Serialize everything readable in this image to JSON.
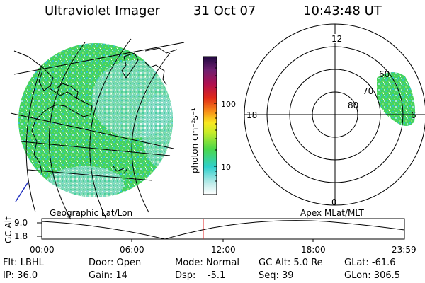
{
  "header": {
    "title": "Ultraviolet Imager",
    "date": "31 Oct 07",
    "time": "10:43:48 UT"
  },
  "colorbar": {
    "unit_label": "photon cm⁻²s⁻¹",
    "ticks": [
      "100",
      "10"
    ]
  },
  "polar_plot": {
    "mlt_labels": {
      "top": "12",
      "left": "18",
      "right": "6",
      "bottom": "0"
    },
    "lat_labels": [
      "60",
      "70",
      "80"
    ]
  },
  "timeline": {
    "y_title": "GC Alt",
    "y_ticks": [
      "9.0",
      "1.8"
    ],
    "left_label": "Geographic Lat/Lon",
    "right_label": "Apex  MLat/MLT",
    "time_ticks": [
      "00:00",
      "06:00",
      "12:00",
      "18:00",
      "23:59"
    ]
  },
  "footer": {
    "row1": [
      "Flt: LBHL",
      "Door: Open",
      "Mode: Normal",
      "GC Alt: 5.0 Re",
      "GLat: -61.6"
    ],
    "row2": [
      "IP: 36.0",
      "Gain: 14",
      "Dsp:    -5.1",
      "Seq: 39",
      "GLon: 306.5"
    ]
  },
  "colors": {
    "intensity_low": "#36c8c0",
    "intensity_mid": "#44d850",
    "intensity_high": "#2a0a4a",
    "marker": "#e02020"
  }
}
